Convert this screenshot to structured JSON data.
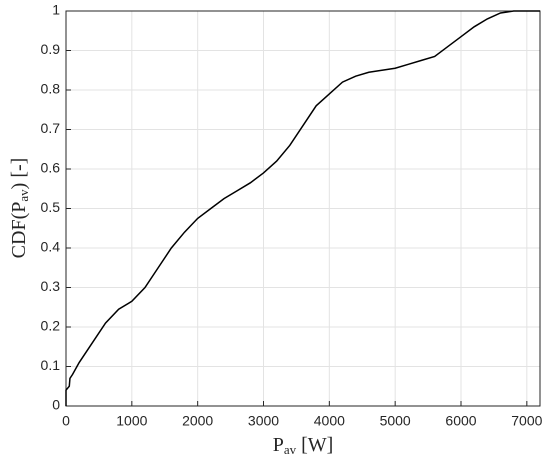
{
  "chart_data": {
    "type": "line",
    "xlabel": {
      "main": "P",
      "subscript": "av",
      "rest": " [W]"
    },
    "ylabel": {
      "main": "CDF(P",
      "subscript": "av",
      "rest": ") [-]"
    },
    "x": [
      0,
      0,
      50,
      60,
      100,
      200,
      400,
      600,
      800,
      1000,
      1200,
      1400,
      1600,
      1800,
      2000,
      2200,
      2400,
      2600,
      2800,
      3000,
      3200,
      3400,
      3600,
      3800,
      4000,
      4200,
      4400,
      4600,
      4800,
      5000,
      5200,
      5400,
      5600,
      5800,
      6000,
      6200,
      6400,
      6600,
      6800,
      7200
    ],
    "series": [
      {
        "color": "#000000",
        "values": [
          0,
          0.04,
          0.05,
          0.07,
          0.08,
          0.11,
          0.16,
          0.21,
          0.245,
          0.265,
          0.3,
          0.35,
          0.4,
          0.44,
          0.475,
          0.5,
          0.525,
          0.545,
          0.565,
          0.59,
          0.62,
          0.66,
          0.71,
          0.76,
          0.79,
          0.82,
          0.835,
          0.845,
          0.85,
          0.855,
          0.865,
          0.875,
          0.885,
          0.91,
          0.935,
          0.96,
          0.98,
          0.995,
          1,
          1
        ]
      }
    ],
    "xlim": [
      0,
      7200
    ],
    "xticks": [
      0,
      1000,
      2000,
      3000,
      4000,
      5000,
      6000,
      7000
    ],
    "ylim": [
      0,
      1
    ],
    "yticks": [
      0,
      0.1,
      0.2,
      0.3,
      0.4,
      0.5,
      0.6,
      0.7,
      0.8,
      0.9,
      1
    ],
    "grid": true
  }
}
